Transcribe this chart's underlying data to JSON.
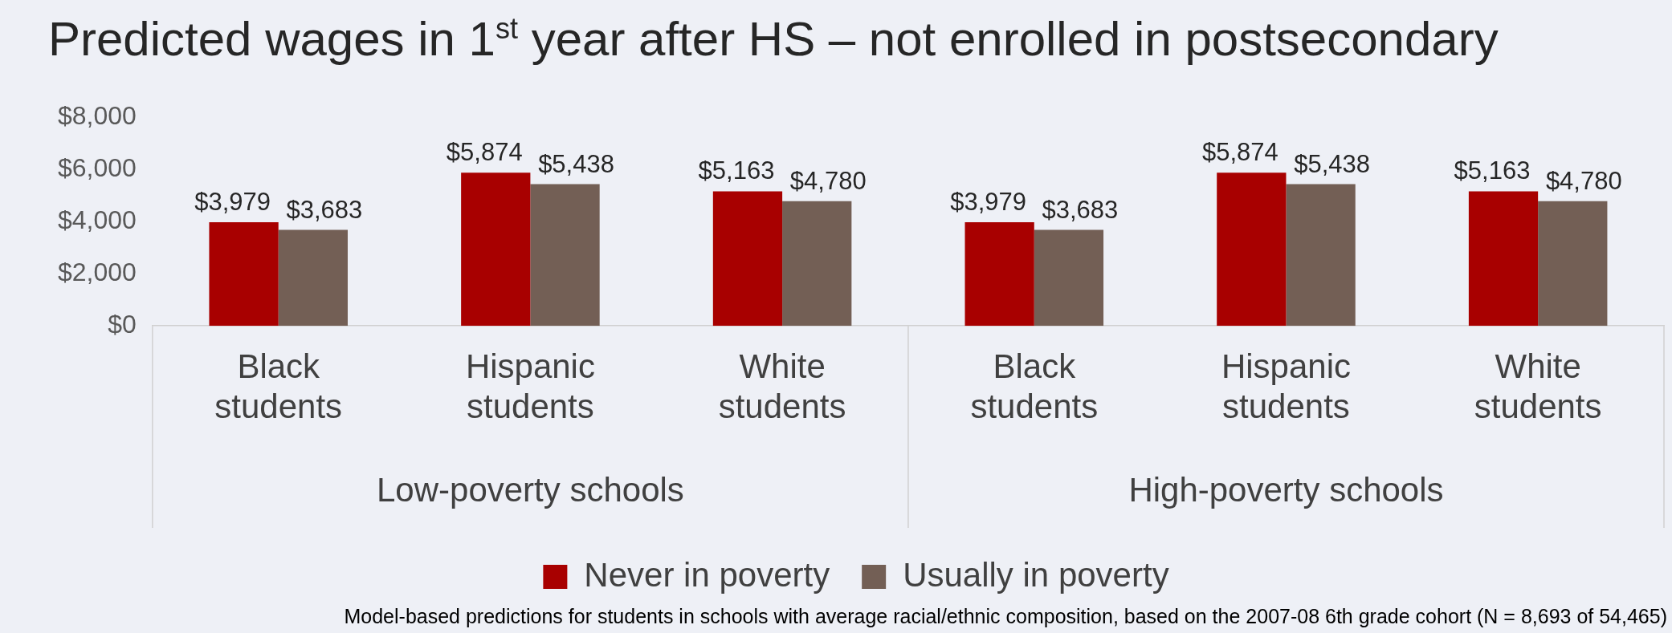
{
  "chart_data": {
    "type": "bar",
    "title": "Predicted wages in 1$^{st}$ year after HS – not enrolled in postsecondary",
    "categories": [
      "Black students",
      "Hispanic students",
      "White students",
      "Black students",
      "Hispanic students",
      "White students"
    ],
    "series": [
      {
        "name": "Never in poverty",
        "color": "#a80000",
        "values": [
          3979,
          5874,
          5163,
          3979,
          5874,
          5163
        ],
        "value_labels": [
          "$3,979",
          "$5,874",
          "$5,163",
          "$3,979",
          "$5,874",
          "$5,163"
        ]
      },
      {
        "name": "Usually in poverty",
        "color": "#735f55",
        "values": [
          3683,
          5438,
          4780,
          3683,
          5438,
          4780
        ],
        "value_labels": [
          "$3,683",
          "$5,438",
          "$4,780",
          "$3,683",
          "$5,438",
          "$4,780"
        ]
      }
    ],
    "ylim": [
      0,
      8000
    ],
    "yticks": [
      {
        "value": 0,
        "label": "$0"
      },
      {
        "value": 2000,
        "label": "$2,000"
      },
      {
        "value": 4000,
        "label": "$4,000"
      },
      {
        "value": 6000,
        "label": "$6,000"
      },
      {
        "value": 8000,
        "label": "$8,000"
      }
    ],
    "grid": false,
    "legend": "bottom",
    "annotations": [
      "Low-poverty schools",
      "High-poverty schools",
      "Model-based predictions for students in schools with average racial/ethnic composition, based on the 2007-08 6th grade cohort (N = 8,693 of 54,465)"
    ]
  }
}
